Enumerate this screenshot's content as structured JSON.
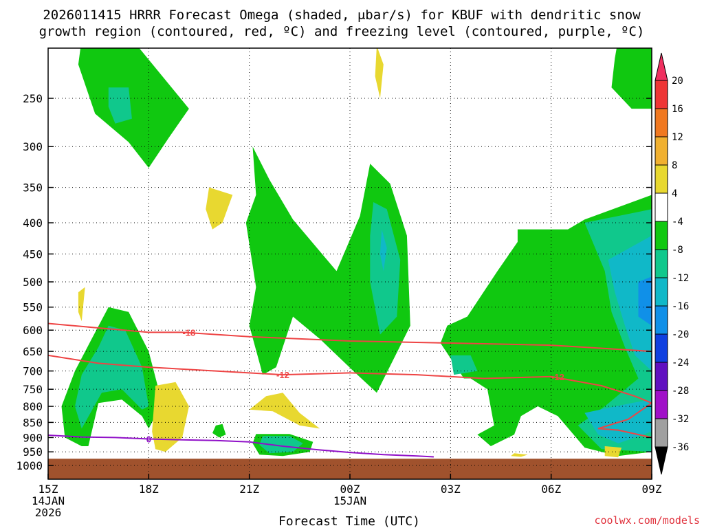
{
  "chart_data": {
    "type": "heatmap",
    "title_line1": "2026011415 HRRR Forecast Omega (shaded, μbar/s) for KBUF with dendritic snow",
    "title_line2": "growth region (contoured, red, ºC) and freezing level (contoured, purple, ºC)",
    "xlabel": "Forecast Time (UTC)",
    "credit": "coolwx.com/models",
    "x_ticks": [
      {
        "hour": 0,
        "label": "15Z",
        "sub1": "14JAN",
        "sub2": "2026"
      },
      {
        "hour": 3,
        "label": "18Z"
      },
      {
        "hour": 6,
        "label": "21Z"
      },
      {
        "hour": 9,
        "label": "00Z",
        "sub1": "15JAN"
      },
      {
        "hour": 12,
        "label": "03Z"
      },
      {
        "hour": 15,
        "label": "06Z"
      },
      {
        "hour": 18,
        "label": "09Z"
      }
    ],
    "xlim": [
      0,
      18
    ],
    "ylim_mb": [
      200,
      1050
    ],
    "y_ticks": [
      "250",
      "300",
      "350",
      "400",
      "450",
      "500",
      "550",
      "600",
      "650",
      "700",
      "750",
      "800",
      "850",
      "900",
      "950",
      "1000"
    ],
    "colorbar": {
      "labels": [
        "20",
        "16",
        "12",
        "8",
        "4",
        "-4",
        "-8",
        "-12",
        "-16",
        "-20",
        "-24",
        "-28",
        "-32",
        "-36"
      ],
      "colors": {
        "c20": "#f03060",
        "c16": "#ee3535",
        "c12": "#f07820",
        "c8": "#f0b030",
        "c4": "#e8d830",
        "cm4": "#ffffff",
        "cm8": "#10c810",
        "cm12": "#10c88c",
        "cm16": "#10b8c8",
        "cm20": "#1090e8",
        "cm24": "#1040e0",
        "cm28": "#6010c0",
        "cm32": "#a010c8",
        "cm36": "#a0a0a0",
        "cbot": "#000000"
      }
    },
    "omega_regions": [
      {
        "level": "-8",
        "pts": [
          [
            1.0,
            200
          ],
          [
            2.5,
            200
          ],
          [
            4.2,
            260
          ],
          [
            3.6,
            290
          ],
          [
            3.0,
            325
          ],
          [
            2.4,
            295
          ],
          [
            1.4,
            265
          ],
          [
            0.9,
            220
          ]
        ]
      },
      {
        "level": "-12",
        "pts": [
          [
            1.8,
            240
          ],
          [
            2.4,
            240
          ],
          [
            2.5,
            270
          ],
          [
            2.0,
            275
          ],
          [
            1.8,
            258
          ]
        ]
      },
      {
        "level": "-8",
        "pts": [
          [
            1.8,
            550
          ],
          [
            2.4,
            560
          ],
          [
            3.0,
            650
          ],
          [
            3.4,
            790
          ],
          [
            3.0,
            870
          ],
          [
            2.8,
            830
          ],
          [
            2.2,
            780
          ],
          [
            1.5,
            790
          ],
          [
            1.2,
            930
          ],
          [
            1.0,
            930
          ],
          [
            0.5,
            900
          ],
          [
            0.4,
            800
          ],
          [
            0.8,
            700
          ],
          [
            1.3,
            620
          ],
          [
            1.8,
            550
          ]
        ]
      },
      {
        "level": "-12",
        "pts": [
          [
            1.8,
            590
          ],
          [
            2.3,
            600
          ],
          [
            2.8,
            690
          ],
          [
            3.0,
            800
          ],
          [
            2.8,
            810
          ],
          [
            2.2,
            750
          ],
          [
            1.6,
            760
          ],
          [
            1.0,
            870
          ],
          [
            0.8,
            800
          ],
          [
            1.0,
            710
          ],
          [
            1.5,
            640
          ]
        ]
      },
      {
        "level": "-8",
        "pts": [
          [
            6.1,
            300
          ],
          [
            6.6,
            340
          ],
          [
            7.3,
            395
          ],
          [
            8.6,
            480
          ],
          [
            9.3,
            390
          ],
          [
            9.6,
            320
          ],
          [
            10.2,
            345
          ],
          [
            10.7,
            420
          ],
          [
            10.8,
            590
          ],
          [
            9.8,
            760
          ],
          [
            9.1,
            700
          ],
          [
            8.1,
            620
          ],
          [
            7.3,
            570
          ],
          [
            6.8,
            690
          ],
          [
            6.4,
            710
          ],
          [
            6.0,
            590
          ],
          [
            6.2,
            510
          ],
          [
            5.9,
            400
          ],
          [
            6.2,
            360
          ]
        ]
      },
      {
        "level": "-12",
        "pts": [
          [
            9.7,
            370
          ],
          [
            10.1,
            380
          ],
          [
            10.5,
            460
          ],
          [
            10.4,
            570
          ],
          [
            9.9,
            610
          ],
          [
            9.6,
            500
          ],
          [
            9.6,
            420
          ]
        ]
      },
      {
        "level": "-16",
        "pts": [
          [
            9.95,
            410
          ],
          [
            10.1,
            440
          ],
          [
            10.0,
            480
          ],
          [
            9.9,
            450
          ]
        ]
      },
      {
        "level": "-8",
        "pts": [
          [
            14.0,
            410
          ],
          [
            15.5,
            410
          ],
          [
            16.0,
            395
          ],
          [
            18.0,
            360
          ],
          [
            18.0,
            950
          ],
          [
            17.0,
            965
          ],
          [
            16.0,
            935
          ],
          [
            15.2,
            830
          ],
          [
            14.6,
            800
          ],
          [
            14.1,
            830
          ],
          [
            13.9,
            890
          ],
          [
            13.2,
            930
          ],
          [
            12.8,
            890
          ],
          [
            13.3,
            860
          ],
          [
            13.1,
            750
          ],
          [
            12.6,
            720
          ],
          [
            12.4,
            720
          ],
          [
            11.7,
            630
          ],
          [
            11.9,
            590
          ],
          [
            12.5,
            570
          ],
          [
            13.4,
            480
          ],
          [
            14.0,
            430
          ]
        ]
      },
      {
        "level": "-12",
        "pts": [
          [
            16.0,
            400
          ],
          [
            18.0,
            380
          ],
          [
            18.0,
            950
          ],
          [
            16.5,
            940
          ],
          [
            15.8,
            860
          ],
          [
            16.6,
            800
          ],
          [
            17.6,
            720
          ],
          [
            17.2,
            640
          ],
          [
            16.8,
            560
          ],
          [
            16.6,
            480
          ]
        ]
      },
      {
        "level": "-16",
        "pts": [
          [
            16.7,
            460
          ],
          [
            18.0,
            420
          ],
          [
            18.0,
            700
          ],
          [
            17.5,
            660
          ],
          [
            17.2,
            590
          ],
          [
            16.9,
            520
          ]
        ]
      },
      {
        "level": "-20",
        "pts": [
          [
            17.6,
            500
          ],
          [
            18.0,
            490
          ],
          [
            18.0,
            590
          ],
          [
            17.6,
            570
          ]
        ]
      },
      {
        "level": "-16",
        "pts": [
          [
            16.0,
            820
          ],
          [
            17.4,
            790
          ],
          [
            18.0,
            780
          ],
          [
            18.0,
            880
          ],
          [
            17.0,
            920
          ],
          [
            16.4,
            890
          ]
        ]
      },
      {
        "level": "-12",
        "pts": [
          [
            12.0,
            660
          ],
          [
            12.6,
            660
          ],
          [
            12.8,
            700
          ],
          [
            12.1,
            710
          ]
        ]
      },
      {
        "level": "-8",
        "pts": [
          [
            6.2,
            888
          ],
          [
            7.2,
            888
          ],
          [
            7.9,
            915
          ],
          [
            7.8,
            950
          ],
          [
            7.0,
            965
          ],
          [
            6.3,
            960
          ],
          [
            6.1,
            920
          ]
        ]
      },
      {
        "level": "-12",
        "pts": [
          [
            6.4,
            895
          ],
          [
            7.2,
            895
          ],
          [
            7.6,
            920
          ],
          [
            7.3,
            950
          ],
          [
            6.6,
            955
          ],
          [
            6.3,
            925
          ]
        ]
      },
      {
        "level": "-8",
        "pts": [
          [
            17.0,
            200
          ],
          [
            18.0,
            200
          ],
          [
            18.0,
            260
          ],
          [
            17.4,
            260
          ],
          [
            16.8,
            240
          ],
          [
            16.9,
            215
          ]
        ]
      },
      {
        "level": "-8",
        "pts": [
          [
            5.0,
            860
          ],
          [
            5.2,
            855
          ],
          [
            5.3,
            890
          ],
          [
            5.1,
            900
          ],
          [
            4.9,
            885
          ]
        ]
      },
      {
        "level": "4",
        "pts": [
          [
            3.2,
            740
          ],
          [
            3.8,
            730
          ],
          [
            4.2,
            800
          ],
          [
            4.0,
            900
          ],
          [
            3.5,
            950
          ],
          [
            3.2,
            940
          ],
          [
            3.1,
            880
          ]
        ]
      },
      {
        "level": "4",
        "pts": [
          [
            6.5,
            770
          ],
          [
            7.0,
            760
          ],
          [
            7.5,
            820
          ],
          [
            8.1,
            870
          ],
          [
            7.5,
            860
          ],
          [
            6.7,
            815
          ],
          [
            6.0,
            810
          ]
        ]
      },
      {
        "level": "4",
        "pts": [
          [
            4.8,
            350
          ],
          [
            5.5,
            360
          ],
          [
            5.2,
            400
          ],
          [
            4.9,
            410
          ],
          [
            4.7,
            380
          ]
        ]
      },
      {
        "level": "4",
        "pts": [
          [
            0.9,
            520
          ],
          [
            1.1,
            510
          ],
          [
            1.0,
            580
          ],
          [
            0.9,
            560
          ]
        ]
      },
      {
        "level": "4",
        "pts": [
          [
            9.8,
            205
          ],
          [
            10.0,
            220
          ],
          [
            9.9,
            250
          ],
          [
            9.75,
            230
          ]
        ]
      },
      {
        "level": "4",
        "pts": [
          [
            16.6,
            930
          ],
          [
            17.1,
            935
          ],
          [
            17.0,
            970
          ],
          [
            16.6,
            965
          ]
        ]
      },
      {
        "level": "4",
        "pts": [
          [
            13.9,
            955
          ],
          [
            14.3,
            960
          ],
          [
            14.1,
            968
          ],
          [
            13.8,
            965
          ]
        ]
      }
    ],
    "contours": [
      {
        "name": "-18",
        "color": "#ee4444",
        "label_at": 4.2,
        "pts": [
          [
            0,
            585
          ],
          [
            1.5,
            595
          ],
          [
            3,
            605
          ],
          [
            4,
            605
          ],
          [
            6,
            615
          ],
          [
            9,
            625
          ],
          [
            12,
            630
          ],
          [
            15,
            635
          ],
          [
            18,
            650
          ]
        ]
      },
      {
        "name": "-12",
        "color": "#ee4444",
        "label_at": 7.0,
        "pts": [
          [
            0,
            660
          ],
          [
            1.5,
            680
          ],
          [
            3,
            690
          ],
          [
            5,
            700
          ],
          [
            7,
            710
          ],
          [
            9,
            705
          ],
          [
            11,
            710
          ],
          [
            13,
            720
          ],
          [
            15,
            715
          ],
          [
            16.5,
            740
          ],
          [
            17.5,
            770
          ],
          [
            18,
            790
          ]
        ]
      },
      {
        "name": "-12-loop",
        "color": "#ee4444",
        "label_at": -1,
        "pts": [
          [
            18,
            790
          ],
          [
            17.3,
            840
          ],
          [
            16.4,
            870
          ],
          [
            17,
            875
          ],
          [
            18,
            900
          ]
        ]
      },
      {
        "name": "0",
        "color": "#9010c8",
        "label_at": 3.0,
        "pts": [
          [
            0,
            892
          ],
          [
            1,
            898
          ],
          [
            2,
            900
          ],
          [
            3,
            905
          ],
          [
            4,
            908
          ],
          [
            5,
            910
          ],
          [
            6,
            915
          ],
          [
            7,
            930
          ],
          [
            8,
            942
          ],
          [
            9,
            952
          ],
          [
            10,
            960
          ],
          [
            11,
            965
          ],
          [
            11.5,
            968
          ]
        ]
      }
    ],
    "contour_labels": [
      {
        "text": "-18",
        "hour": 4.2,
        "mb": 605,
        "color": "#ee4444"
      },
      {
        "text": "-12",
        "hour": 7.0,
        "mb": 710,
        "color": "#ee4444"
      },
      {
        "text": "-12",
        "hour": 15.2,
        "mb": 715,
        "color": "#ee4444"
      },
      {
        "text": "0",
        "hour": 3.0,
        "mb": 905,
        "color": "#9010c8"
      }
    ],
    "ground": {
      "top_mb": 975,
      "color": "#a0522d"
    }
  }
}
